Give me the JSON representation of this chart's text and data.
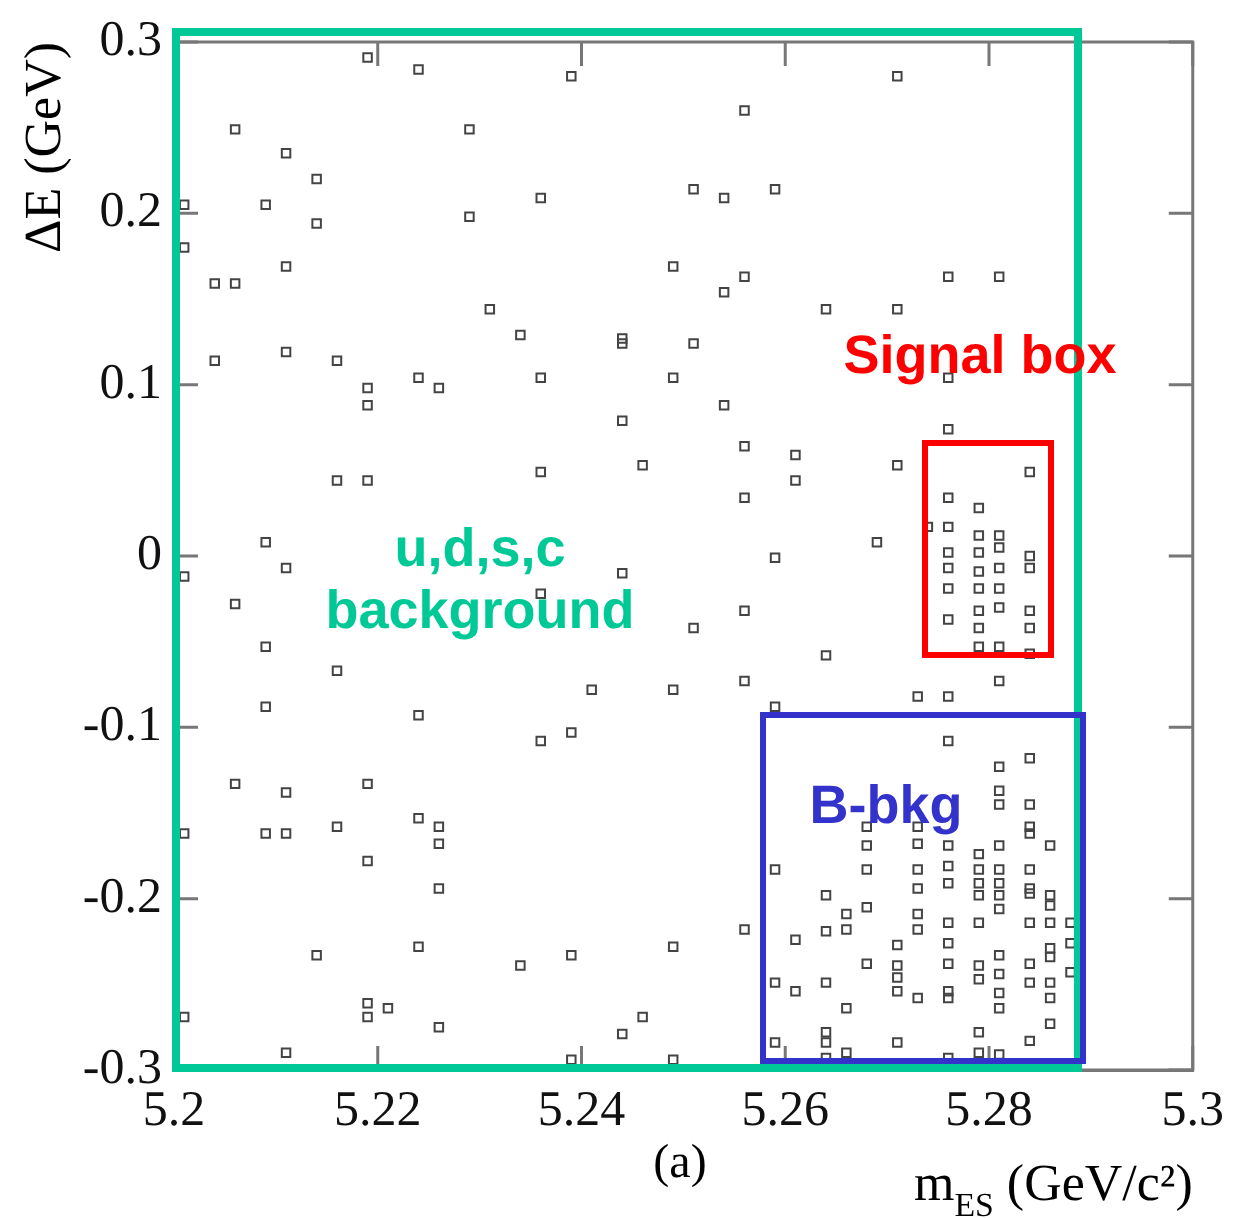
{
  "chart_data": {
    "type": "scatter",
    "xlabel": "m$_{ES}$ (GeV/c²)",
    "ylabel": "ΔE (GeV)",
    "xlim": [
      5.2,
      5.3
    ],
    "xticks": [
      5.2,
      5.22,
      5.24,
      5.26,
      5.28,
      5.3
    ],
    "ylim": [
      -0.3,
      0.3
    ],
    "yticks": [
      -0.3,
      -0.2,
      -0.1,
      0,
      0.1,
      0.2,
      0.3
    ],
    "grid": false,
    "legend": false,
    "marker": "square",
    "annotations": [
      "u,d,s,c\nbackground",
      "Signal box",
      "B-bkg",
      "(a)"
    ],
    "series": [
      {
        "color": "#444444",
        "x": [
          5.201,
          5.201,
          5.204,
          5.206,
          5.206,
          5.204,
          5.209,
          5.211,
          5.211,
          5.211,
          5.214,
          5.214,
          5.216,
          5.216,
          5.219,
          5.219,
          5.219,
          5.219,
          5.224,
          5.224,
          5.226,
          5.229,
          5.229,
          5.231,
          5.234,
          5.236,
          5.236,
          5.236,
          5.239,
          5.244,
          5.244,
          5.244,
          5.209,
          5.211,
          5.244,
          5.201,
          5.271,
          5.256,
          5.251,
          5.254,
          5.259,
          5.249,
          5.256,
          5.254,
          5.276,
          5.281,
          5.264,
          5.271,
          5.251,
          5.249,
          5.254,
          5.276,
          5.276,
          5.256,
          5.261,
          5.246,
          5.271,
          5.261,
          5.284,
          5.256,
          5.276,
          5.269,
          5.259,
          5.279,
          5.276,
          5.279,
          5.281,
          5.276,
          5.279,
          5.281,
          5.284,
          5.274,
          5.276,
          5.279,
          5.281,
          5.284,
          5.206,
          5.209,
          5.216,
          5.209,
          5.224,
          5.236,
          5.241,
          5.236,
          5.239,
          5.206,
          5.211,
          5.219,
          5.201,
          5.209,
          5.211,
          5.216,
          5.224,
          5.226,
          5.226,
          5.219,
          5.226,
          5.214,
          5.224,
          5.234,
          5.239,
          5.201,
          5.219,
          5.219,
          5.221,
          5.226,
          5.244,
          5.211,
          5.239,
          5.276,
          5.279,
          5.281,
          5.279,
          5.281,
          5.284,
          5.276,
          5.279,
          5.284,
          5.279,
          5.281,
          5.284,
          5.281,
          5.256,
          5.251,
          5.264,
          5.256,
          5.249,
          5.259,
          5.273,
          5.276,
          5.276,
          5.281,
          5.284,
          5.281,
          5.281,
          5.284,
          5.268,
          5.273,
          5.284,
          5.268,
          5.273,
          5.276,
          5.279,
          5.281,
          5.284,
          5.286,
          5.259,
          5.268,
          5.273,
          5.276,
          5.279,
          5.281,
          5.284,
          5.276,
          5.279,
          5.281,
          5.273,
          5.284,
          5.264,
          5.268,
          5.273,
          5.279,
          5.281,
          5.284,
          5.286,
          5.286,
          5.266,
          5.264,
          5.266,
          5.273,
          5.276,
          5.279,
          5.281,
          5.284,
          5.286,
          5.288,
          5.256,
          5.261,
          5.271,
          5.276,
          5.268,
          5.271,
          5.276,
          5.279,
          5.281,
          5.284,
          5.286,
          5.288,
          5.286,
          5.288,
          5.271,
          5.271,
          5.279,
          5.281,
          5.259,
          5.261,
          5.264,
          5.273,
          5.276,
          5.276,
          5.281,
          5.284,
          5.286,
          5.281,
          5.286,
          5.266,
          5.246,
          5.249,
          5.286,
          5.259,
          5.264,
          5.264,
          5.271,
          5.279,
          5.284,
          5.266,
          5.279,
          5.281,
          5.264,
          5.276,
          5.249
        ],
        "values": [
          0.205,
          0.18,
          0.159,
          0.159,
          0.249,
          0.114,
          0.205,
          0.235,
          0.169,
          0.119,
          0.22,
          0.194,
          0.114,
          0.044,
          0.291,
          0.098,
          0.088,
          0.044,
          0.284,
          0.104,
          0.098,
          0.249,
          0.198,
          0.144,
          0.129,
          0.209,
          0.104,
          0.049,
          0.28,
          0.127,
          0.124,
          0.079,
          0.008,
          -0.007,
          -0.01,
          -0.012,
          0.28,
          0.26,
          0.214,
          0.209,
          0.214,
          0.169,
          0.163,
          0.154,
          0.163,
          0.163,
          0.144,
          0.144,
          0.124,
          0.104,
          0.088,
          0.104,
          0.074,
          0.064,
          0.059,
          0.053,
          0.053,
          0.044,
          0.049,
          0.034,
          0.034,
          0.008,
          -0.001,
          0.028,
          0.017,
          0.012,
          0.012,
          0.002,
          0.002,
          0.005,
          0,
          0.017,
          -0.007,
          -0.009,
          -0.007,
          -0.007,
          -0.028,
          -0.053,
          -0.067,
          -0.088,
          -0.093,
          -0.022,
          -0.078,
          -0.108,
          -0.103,
          -0.133,
          -0.138,
          -0.133,
          -0.162,
          -0.162,
          -0.162,
          -0.158,
          -0.153,
          -0.158,
          -0.168,
          -0.178,
          -0.194,
          -0.233,
          -0.228,
          -0.239,
          -0.233,
          -0.269,
          -0.261,
          -0.269,
          -0.264,
          -0.275,
          -0.279,
          -0.29,
          -0.294,
          -0.019,
          -0.019,
          -0.019,
          -0.032,
          -0.03,
          -0.032,
          -0.037,
          -0.042,
          -0.042,
          -0.053,
          -0.053,
          -0.057,
          -0.073,
          -0.032,
          -0.042,
          -0.058,
          -0.073,
          -0.078,
          -0.088,
          -0.082,
          -0.082,
          -0.108,
          -0.123,
          -0.118,
          -0.137,
          -0.145,
          -0.145,
          -0.158,
          -0.158,
          -0.158,
          -0.169,
          -0.168,
          -0.169,
          -0.174,
          -0.169,
          -0.162,
          -0.169,
          -0.183,
          -0.183,
          -0.183,
          -0.181,
          -0.183,
          -0.183,
          -0.183,
          -0.191,
          -0.191,
          -0.191,
          -0.194,
          -0.194,
          -0.198,
          -0.205,
          -0.209,
          -0.198,
          -0.198,
          -0.197,
          -0.198,
          -0.204,
          -0.209,
          -0.219,
          -0.218,
          -0.218,
          -0.214,
          -0.214,
          -0.206,
          -0.214,
          -0.214,
          -0.214,
          -0.218,
          -0.224,
          -0.227,
          -0.226,
          -0.238,
          -0.239,
          -0.238,
          -0.239,
          -0.233,
          -0.238,
          -0.229,
          -0.226,
          -0.234,
          -0.243,
          -0.246,
          -0.254,
          -0.247,
          -0.244,
          -0.249,
          -0.254,
          -0.249,
          -0.258,
          -0.254,
          -0.258,
          -0.255,
          -0.249,
          -0.249,
          -0.264,
          -0.258,
          -0.264,
          -0.269,
          -0.228,
          -0.273,
          -0.284,
          -0.278,
          -0.284,
          -0.284,
          -0.278,
          -0.283,
          -0.29,
          -0.29,
          -0.291,
          -0.293,
          -0.293,
          -0.294
        ]
      }
    ]
  }
}
